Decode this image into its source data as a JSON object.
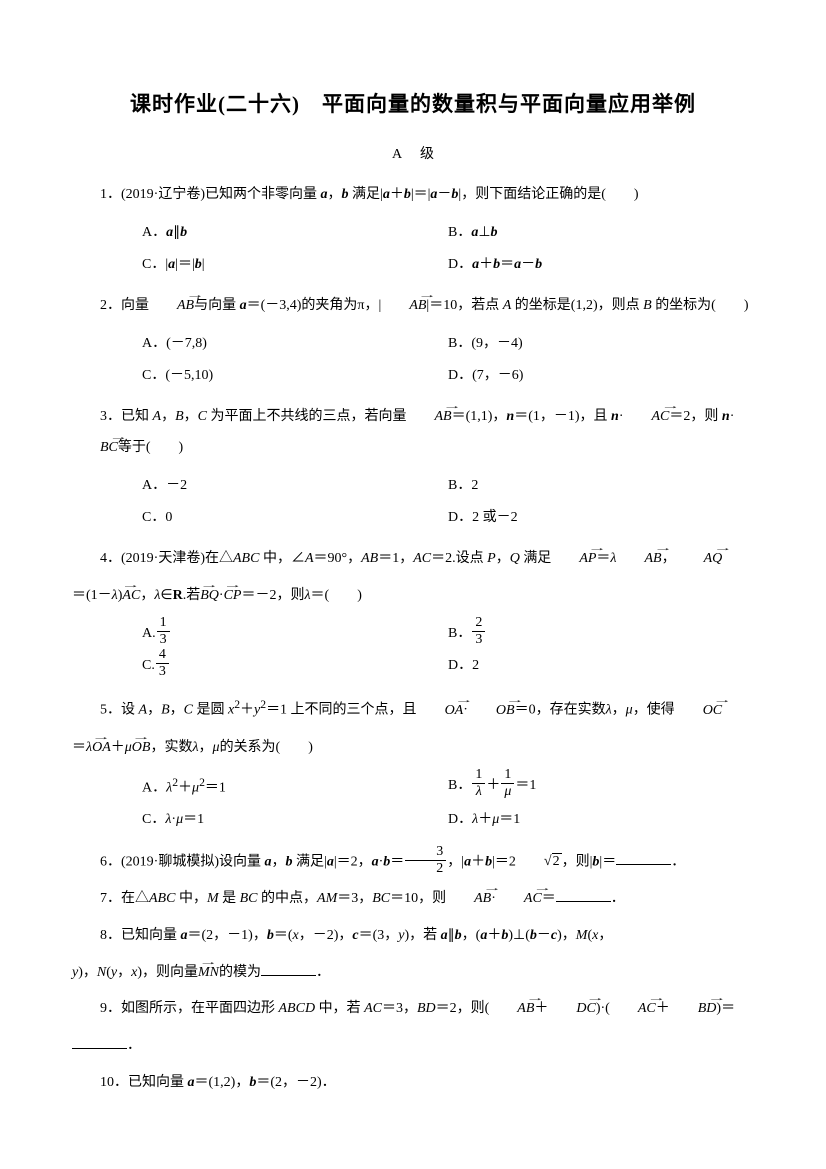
{
  "title": "课时作业(二十六)　平面向量的数量积与平面向量应用举例",
  "level": "A级",
  "q1": {
    "stem_pre": "1．(2019·辽宁卷)已知两个非零向量 ",
    "stem_mid1": "，",
    "stem_mid2": " 满足|",
    "stem_mid3": "＋",
    "stem_mid4": "|＝|",
    "stem_mid5": "－",
    "stem_mid6": "|，则下面结论正确的是(　　)",
    "A_pre": "A．",
    "A_mid": "∥",
    "B_pre": "B．",
    "B_mid": "⊥",
    "C_pre": "C．|",
    "C_mid": "|＝|",
    "C_end": "|",
    "D_pre": "D．",
    "D_mid1": "＋",
    "D_mid2": "＝",
    "D_mid3": "－"
  },
  "q2": {
    "stem_pre": "2．向量",
    "stem_mid1": "与向量 ",
    "stem_mid2": "＝(－3,4)的夹角为π，|",
    "stem_mid3": "|＝10，若点 ",
    "stem_mid4": " 的坐标是(1,2)，则点 ",
    "stem_mid5": " 的坐标为(　　)",
    "A": "A．(－7,8)",
    "B": "B．(9，－4)",
    "C": "C．(－5,10)",
    "D": "D．(7，－6)"
  },
  "q3": {
    "stem_pre": "3．已知 ",
    "stem_mid1": "，",
    "stem_mid2": "，",
    "stem_mid3": " 为平面上不共线的三点，若向量",
    "stem_mid4": "＝(1,1)，",
    "stem_mid5": "＝(1，－1)，且 ",
    "stem_mid6": "·",
    "stem_mid7": "＝2，则 ",
    "stem_mid8": "·",
    "stem_mid9": "等于(　　)",
    "A": "A．－2",
    "B": "B．2",
    "C": "C．0",
    "D": "D．2 或－2"
  },
  "q4": {
    "stem_pre": "4．(2019·天津卷)在△",
    "stem_mid1": " 中，∠",
    "stem_mid2": "＝90°，",
    "stem_mid3": "＝1，",
    "stem_mid4": "＝2.设点 ",
    "stem_mid5": "，",
    "stem_mid6": " 满足",
    "stem_mid7": "＝",
    "stem_mid8": "，",
    "stem_line2_pre": "＝(1－",
    "stem_line2_mid1": ")",
    "stem_line2_mid2": "，",
    "stem_line2_mid3": "∈",
    "stem_line2_mid4": ".若",
    "stem_line2_mid5": "·",
    "stem_line2_mid6": "＝－2，则",
    "stem_line2_mid7": "＝(　　)",
    "A_pre": "A.",
    "A_n": "1",
    "A_d": "3",
    "B_pre": "B．",
    "B_n": "2",
    "B_d": "3",
    "C_pre": "C.",
    "C_n": "4",
    "C_d": "3",
    "D": "D．2"
  },
  "q5": {
    "stem_pre": "5．设 ",
    "stem_mid1": "，",
    "stem_mid2": "，",
    "stem_mid3": " 是圆 ",
    "stem_mid4": "＋",
    "stem_mid5": "＝1 上不同的三个点，且",
    "stem_mid6": "·",
    "stem_mid7": "＝0，存在实数",
    "stem_mid8": "，",
    "stem_mid9": "，使得",
    "stem_line2_pre": "＝",
    "stem_line2_mid1": "＋",
    "stem_line2_mid2": "，实数",
    "stem_line2_mid3": "，",
    "stem_line2_mid4": "的关系为(　　)",
    "A_pre": "A．",
    "A_mid": "＋",
    "A_end": "＝1",
    "B_pre": "B．",
    "B_mid": "＋",
    "B_end": "＝1",
    "B_n1": "1",
    "B_n2": "1",
    "C_pre": "C．",
    "C_mid": "·",
    "C_end": "＝1",
    "D_pre": "D．",
    "D_mid": "＋",
    "D_end": "＝1"
  },
  "q6": {
    "stem_pre": "6．(2019·聊城模拟)设向量 ",
    "stem_mid1": "，",
    "stem_mid2": " 满足|",
    "stem_mid3": "|＝2，",
    "stem_mid4": "·",
    "stem_mid5": "＝",
    "stem_mid6": "，|",
    "stem_mid7": "＋",
    "stem_mid8": "|＝2",
    "stem_mid9": "，则|",
    "stem_mid10": "|＝",
    "stem_end": "．",
    "fr_n": "3",
    "fr_d": "2",
    "sqrt": "2"
  },
  "q7": {
    "stem_pre": "7．在△",
    "stem_mid1": " 中，",
    "stem_mid2": " 是 ",
    "stem_mid3": " 的中点，",
    "stem_mid4": "＝3，",
    "stem_mid5": "＝10，则",
    "stem_mid6": "·",
    "stem_mid7": "＝",
    "stem_end": "．"
  },
  "q8": {
    "stem_pre": "8．已知向量 ",
    "stem_mid1": "＝(2，－1)，",
    "stem_mid2": "＝(",
    "stem_mid3": "，－2)，",
    "stem_mid4": "＝(3，",
    "stem_mid5": ")，若 ",
    "stem_mid6": "∥",
    "stem_mid7": "，(",
    "stem_mid8": "＋",
    "stem_mid9": ")⊥(",
    "stem_mid10": "－",
    "stem_mid11": ")，",
    "stem_mid12": "(",
    "stem_mid13": "，",
    "line2_pre": ")，",
    "line2_mid1": "(",
    "line2_mid2": "，",
    "line2_mid3": ")，则向量",
    "line2_mid4": "的模为",
    "line2_end": "．"
  },
  "q9": {
    "stem_pre": "9．如图所示，在平面四边形 ",
    "stem_mid1": " 中，若 ",
    "stem_mid2": "＝3，",
    "stem_mid3": "＝2，则(",
    "stem_mid4": "＋",
    "stem_mid5": ")·(",
    "stem_mid6": "＋",
    "stem_mid7": ")＝",
    "line2_end": "．"
  },
  "q10": {
    "stem_pre": "10．已知向量 ",
    "stem_mid1": "＝(1,2)，",
    "stem_mid2": "＝(2，－2)．"
  },
  "sym": {
    "a": "a",
    "b": "b",
    "c": "c",
    "n": "n",
    "A": "A",
    "B": "B",
    "C": "C",
    "D": "D",
    "M": "M",
    "N": "N",
    "P": "P",
    "Q": "Q",
    "x": "x",
    "y": "y",
    "lam": "λ",
    "mu": "μ",
    "AB": "AB",
    "AC": "AC",
    "BC": "BC",
    "AP": "AP",
    "AQ": "AQ",
    "BQ": "BQ",
    "CP": "CP",
    "OA": "OA",
    "OB": "OB",
    "OC": "OC",
    "DC": "DC",
    "BD": "BD",
    "MN": "MN",
    "AM": "AM",
    "ABC": "ABC",
    "ABCD": "ABCD",
    "R": "R",
    "sq2": "2",
    "sq1": "1"
  }
}
